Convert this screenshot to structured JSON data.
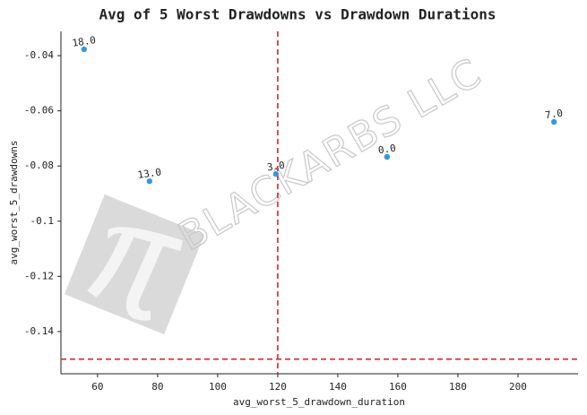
{
  "chart_data": {
    "type": "scatter",
    "title": "Avg of 5 Worst Drawdowns vs Drawdown Durations",
    "x_label": "avg_worst_5_drawdown_duration",
    "y_label": "avg_worst_5_drawdowns",
    "watermark": "BLACKARBS LLC",
    "x": [
      55.5,
      77.3,
      119.4,
      156.4,
      212
    ],
    "values": [
      -0.0377,
      -0.0855,
      -0.0829,
      -0.0767,
      -0.064
    ],
    "point_labels": [
      "18.0",
      "13.0",
      "3.0",
      "0.0",
      "7.0"
    ],
    "color": "#3498db",
    "xlim": [
      47.8,
      220
    ],
    "ylim": [
      -0.1553,
      -0.0312
    ],
    "xticks": [
      60,
      80,
      100,
      120,
      140,
      160,
      180,
      200
    ],
    "yticks": [
      -0.04,
      -0.06,
      -0.08,
      -0.1,
      -0.12,
      -0.14
    ],
    "vlines": [
      120
    ],
    "hlines": [
      -0.15
    ],
    "line_color": "#d62728"
  }
}
